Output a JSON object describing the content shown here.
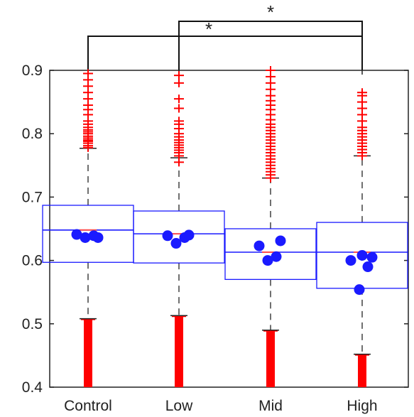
{
  "chart_data": {
    "type": "boxplot",
    "title": "",
    "xlabel": "",
    "ylabel": "",
    "ylim": [
      0.4,
      0.9
    ],
    "yticks": [
      "0.4",
      "0.5",
      "0.6",
      "0.7",
      "0.8",
      "0.9"
    ],
    "grid": false,
    "legend": "none",
    "colors": {
      "box": "#1a1aff",
      "median": "#ff4d4d",
      "outlier": "#ff0000",
      "point": "#1a1aff",
      "axis": "#222222"
    },
    "groups": [
      {
        "label": "Control",
        "box": {
          "q1": 0.597,
          "median": 0.648,
          "q3": 0.687,
          "whisker_low": 0.508,
          "whisker_high": 0.777
        },
        "outliers_high": [
          0.778,
          0.781,
          0.785,
          0.788,
          0.79,
          0.793,
          0.796,
          0.8,
          0.803,
          0.806,
          0.81,
          0.815,
          0.82,
          0.83,
          0.838,
          0.845,
          0.855,
          0.865,
          0.875,
          0.885,
          0.895
        ],
        "outlier_band_low": [
          0.4,
          0.508
        ],
        "points": [
          0.636,
          0.639,
          0.641,
          0.636
        ]
      },
      {
        "label": "Low",
        "box": {
          "q1": 0.596,
          "median": 0.642,
          "q3": 0.678,
          "whisker_low": 0.513,
          "whisker_high": 0.762
        },
        "outliers_high": [
          0.755,
          0.765,
          0.77,
          0.774,
          0.778,
          0.782,
          0.786,
          0.79,
          0.795,
          0.8,
          0.808,
          0.815,
          0.82,
          0.84,
          0.855,
          0.88,
          0.892
        ],
        "outlier_band_low": [
          0.4,
          0.513
        ],
        "points": [
          0.627,
          0.636,
          0.639,
          0.64
        ]
      },
      {
        "label": "Mid",
        "box": {
          "q1": 0.57,
          "median": 0.613,
          "q3": 0.65,
          "whisker_low": 0.49,
          "whisker_high": 0.73
        },
        "outliers_high": [
          0.73,
          0.735,
          0.74,
          0.745,
          0.75,
          0.755,
          0.76,
          0.765,
          0.77,
          0.775,
          0.78,
          0.785,
          0.79,
          0.795,
          0.8,
          0.805,
          0.81,
          0.815,
          0.822,
          0.83,
          0.838,
          0.845,
          0.852,
          0.86,
          0.87,
          0.88,
          0.89,
          0.9
        ],
        "outlier_band_low": [
          0.4,
          0.49
        ],
        "points": [
          0.6,
          0.606,
          0.623,
          0.631
        ]
      },
      {
        "label": "High",
        "box": {
          "q1": 0.556,
          "median": 0.613,
          "q3": 0.66,
          "whisker_low": 0.452,
          "whisker_high": 0.765
        },
        "outliers_high": [
          0.765,
          0.77,
          0.775,
          0.78,
          0.785,
          0.79,
          0.795,
          0.8,
          0.805,
          0.81,
          0.82,
          0.83,
          0.84,
          0.85,
          0.86,
          0.865
        ],
        "outlier_band_low": [
          0.4,
          0.452
        ],
        "points": [
          0.554,
          0.59,
          0.6,
          0.605,
          0.608
        ]
      }
    ],
    "significance": [
      {
        "from": "Control",
        "to": "High",
        "label": "*"
      },
      {
        "from": "Low",
        "to": "High",
        "label": "*"
      }
    ]
  }
}
